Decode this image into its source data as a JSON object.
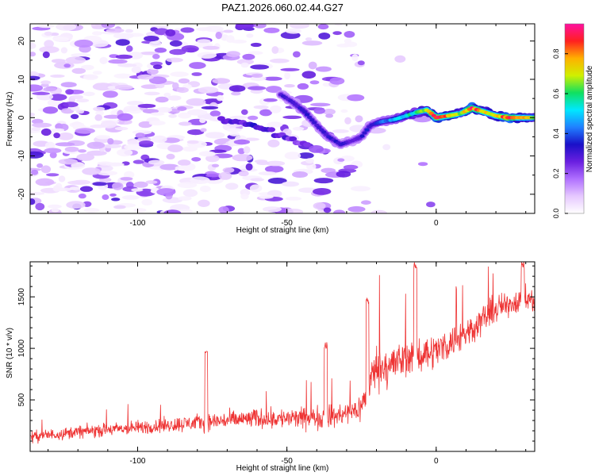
{
  "title": "PAZ1.2026.060.02.44.G27",
  "colors": {
    "snr_line": "#ee3333",
    "colormap": [
      "#ffffff",
      "#e6c8ff",
      "#b070ff",
      "#6a1fe0",
      "#1a10c8",
      "#2080ff",
      "#00e8ff",
      "#10e060",
      "#d0f000",
      "#ffb000",
      "#ff2020",
      "#ff10a0"
    ]
  },
  "chart_data": [
    {
      "type": "heatmap",
      "name": "spectrogram",
      "title": "",
      "xlabel": "Height of straight line (km)",
      "ylabel": "Frequency (Hz)",
      "xlim": [
        -136,
        33
      ],
      "ylim": [
        -25,
        24.5
      ],
      "xticks": [
        -100,
        -50,
        0
      ],
      "xtick_labels": [
        "-100",
        "-50",
        "0"
      ],
      "yticks": [
        -20,
        -10,
        0,
        10,
        20
      ],
      "ytick_labels": [
        "-20",
        "-10",
        "0",
        "10",
        "20"
      ],
      "colorbar": {
        "label": "Normalized spectral amplitude",
        "range": [
          0,
          0.95
        ],
        "ticks": [
          0.0,
          0.2,
          0.4,
          0.6,
          0.8
        ],
        "tick_labels": [
          "0.0",
          "0.2",
          "0.4",
          "0.6",
          "0.8"
        ]
      },
      "ridge": {
        "x": [
          -52,
          -48,
          -44,
          -40,
          -36,
          -32,
          -28,
          -25,
          -22,
          -18,
          -14,
          -10,
          -6,
          -3,
          0,
          4,
          8,
          12,
          16,
          20,
          24,
          28,
          33
        ],
        "freq": [
          6,
          4,
          1.5,
          -2,
          -5,
          -7,
          -6,
          -5,
          -2,
          -1,
          -0.5,
          0.5,
          1.5,
          2,
          0,
          0.5,
          1,
          2.5,
          1.5,
          0.5,
          0,
          0,
          0
        ],
        "amplitude": [
          0.3,
          0.32,
          0.35,
          0.3,
          0.34,
          0.32,
          0.3,
          0.33,
          0.35,
          0.42,
          0.5,
          0.55,
          0.6,
          0.72,
          0.92,
          0.85,
          0.7,
          0.9,
          0.8,
          0.72,
          0.95,
          0.8,
          0.7
        ]
      },
      "secondary_track": {
        "x": [
          -72,
          -66,
          -60,
          -54,
          -48,
          -42
        ],
        "freq": [
          -0.5,
          -1,
          -2.5,
          -4,
          -6,
          -7.5
        ],
        "amplitude": [
          0.28,
          0.3,
          0.32,
          0.3,
          0.28,
          0.26
        ]
      },
      "noise_region": {
        "x_range": [
          -136,
          -25
        ],
        "freq_range": [
          -25,
          24.5
        ],
        "amplitude_range": [
          0.02,
          0.3
        ]
      }
    },
    {
      "type": "line",
      "name": "snr",
      "title": "",
      "xlabel": "Height of straight line (km)",
      "ylabel": "SNR (10 * v/v)",
      "xlim": [
        -136,
        33
      ],
      "ylim": [
        0,
        1840
      ],
      "xticks": [
        -100,
        -50,
        0
      ],
      "xtick_labels": [
        "-100",
        "-50",
        "0"
      ],
      "yticks": [
        500,
        1000,
        1500
      ],
      "ytick_labels": [
        "500",
        "1000",
        "1500"
      ],
      "series": [
        {
          "name": "SNR",
          "x": [
            -136,
            -120,
            -100,
            -80,
            -60,
            -45,
            -38,
            -30,
            -25,
            -22,
            -20,
            -15,
            -10,
            -5,
            0,
            5,
            10,
            15,
            20,
            25,
            30,
            33
          ],
          "y": [
            140,
            190,
            230,
            280,
            320,
            320,
            330,
            360,
            430,
            700,
            820,
            840,
            900,
            950,
            980,
            1060,
            1150,
            1270,
            1380,
            1440,
            1490,
            1450
          ],
          "spread": [
            80,
            90,
            100,
            120,
            140,
            150,
            160,
            170,
            200,
            300,
            320,
            300,
            280,
            260,
            240,
            230,
            220,
            210,
            200,
            180,
            160,
            150
          ]
        }
      ],
      "peaks": [
        {
          "x": -77,
          "y": 980
        },
        {
          "x": -37,
          "y": 1060
        },
        {
          "x": -23,
          "y": 1490
        },
        {
          "x": -7,
          "y": 1840
        },
        {
          "x": 29,
          "y": 1840
        }
      ]
    }
  ]
}
